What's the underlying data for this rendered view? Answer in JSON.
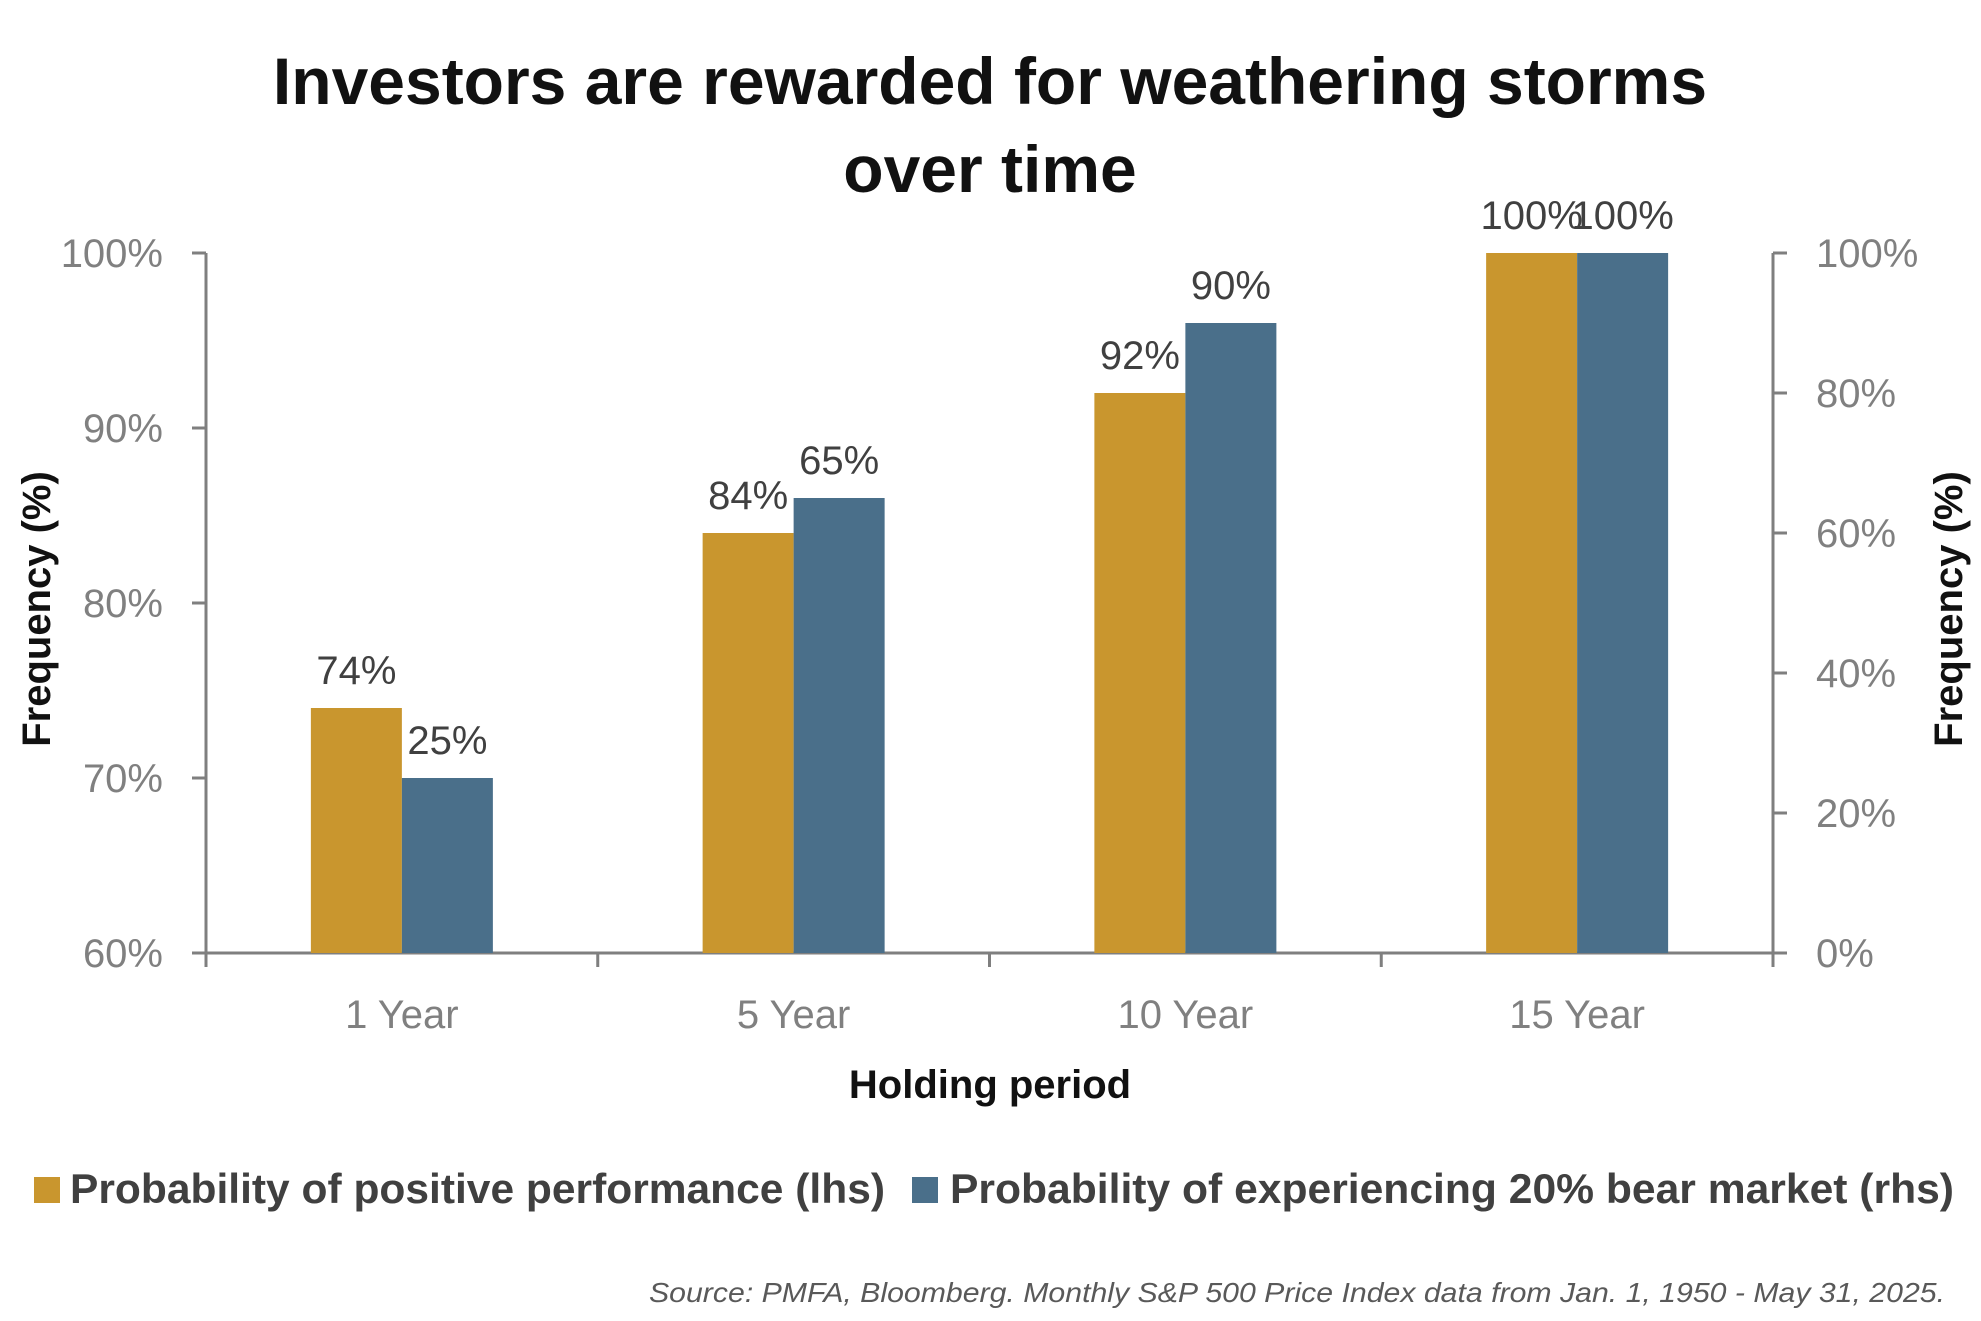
{
  "chart_data": {
    "type": "bar",
    "title_lines": [
      "Investors are rewarded for weathering storms",
      "over time"
    ],
    "categories": [
      "1 Year",
      "5 Year",
      "10 Year",
      "15 Year"
    ],
    "xlabel": "Holding period",
    "ylabel_left": "Frequency (%)",
    "ylabel_right": "Frequency (%)",
    "ylim_left": [
      60,
      100
    ],
    "yticks_left": [
      "60%",
      "70%",
      "80%",
      "90%",
      "100%"
    ],
    "ylim_right": [
      0,
      100
    ],
    "yticks_right": [
      "0%",
      "20%",
      "40%",
      "60%",
      "80%",
      "100%"
    ],
    "grid": false,
    "legend_position": "bottom",
    "series": [
      {
        "name": "Probability of positive performance (lhs)",
        "axis": "left",
        "color": "#C9962E",
        "values": [
          74,
          84,
          92,
          100
        ],
        "labels": [
          "74%",
          "84%",
          "92%",
          "100%"
        ]
      },
      {
        "name": "Probability of experiencing 20% bear market (rhs)",
        "axis": "right",
        "color": "#4A6F8A",
        "values": [
          25,
          65,
          90,
          100
        ],
        "labels": [
          "25%",
          "65%",
          "90%",
          "100%"
        ]
      }
    ],
    "source": "Source: PMFA, Bloomberg. Monthly S&P 500 Price Index data from Jan. 1, 1950 - May 31, 2025."
  }
}
